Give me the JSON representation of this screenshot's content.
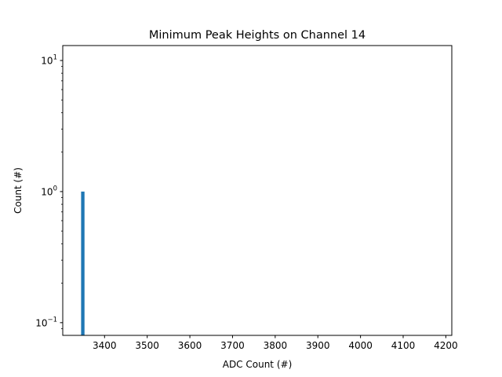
{
  "chart_data": {
    "type": "bar",
    "title": "Minimum Peak Heights on Channel 14",
    "xlabel": "ADC Count (#)",
    "ylabel": "Count (#)",
    "xlim": [
      3302,
      4214
    ],
    "ylim": [
      0.08,
      13
    ],
    "yscale": "log",
    "grid": false,
    "bar_color": "#1f77b4",
    "bars": [
      {
        "x_start": 3345,
        "x_end": 3353,
        "value": 1
      }
    ],
    "x_ticks": [
      3400,
      3500,
      3600,
      3700,
      3800,
      3900,
      4000,
      4100,
      4200
    ],
    "x_tick_labels": [
      "3400",
      "3500",
      "3600",
      "3700",
      "3800",
      "3900",
      "4000",
      "4100",
      "4200"
    ],
    "y_major_ticks": [
      {
        "value": 0.1,
        "base": "10",
        "exp": "−1"
      },
      {
        "value": 1,
        "base": "10",
        "exp": "0"
      },
      {
        "value": 10,
        "base": "10",
        "exp": "1"
      }
    ],
    "y_minor_ticks": [
      0.09,
      0.2,
      0.3,
      0.4,
      0.5,
      0.6,
      0.7,
      0.8,
      0.9,
      2,
      3,
      4,
      5,
      6,
      7,
      8,
      9
    ]
  }
}
